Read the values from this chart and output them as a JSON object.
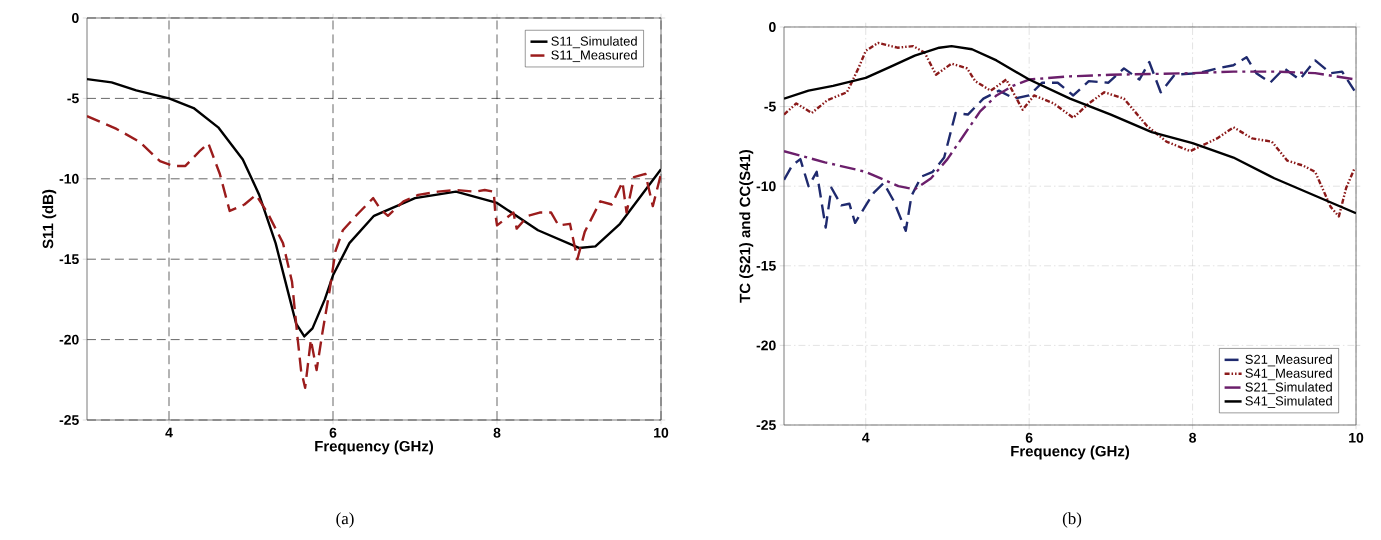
{
  "chart_data": [
    {
      "type": "line",
      "xlabel": "Frequency (GHz)",
      "ylabel": "S11 (dB)",
      "xlim": [
        3,
        10
      ],
      "ylim": [
        -25,
        0
      ],
      "xticks": [
        4,
        6,
        8,
        10
      ],
      "yticks": [
        -25,
        -20,
        -15,
        -10,
        -5,
        0
      ],
      "grid": true,
      "legend": "top right",
      "annotations": [
        "(a)"
      ],
      "series": [
        {
          "name": "S11_Simulated",
          "color": "#000000",
          "line_style": "solid",
          "x": [
            3,
            3.3,
            3.6,
            4,
            4.3,
            4.6,
            4.9,
            5.1,
            5.3,
            5.45,
            5.55,
            5.65,
            5.75,
            5.9,
            6.0,
            6.2,
            6.5,
            7,
            7.5,
            8,
            8.5,
            9,
            9.2,
            9.5,
            10
          ],
          "values": [
            -3.8,
            -4.0,
            -4.5,
            -5.0,
            -5.6,
            -6.8,
            -8.8,
            -11,
            -14,
            -17,
            -19,
            -19.8,
            -19.3,
            -17.5,
            -16,
            -14,
            -12.3,
            -11.2,
            -10.8,
            -11.5,
            -13.2,
            -14.3,
            -14.2,
            -12.8,
            -9.4
          ]
        },
        {
          "name": "S11_Measured",
          "color": "#9b1c1c",
          "line_style": "dashed",
          "x": [
            3,
            3.36,
            3.64,
            3.89,
            4.05,
            4.2,
            4.37,
            4.48,
            4.62,
            4.74,
            4.92,
            5.06,
            5.2,
            5.39,
            5.5,
            5.57,
            5.61,
            5.66,
            5.73,
            5.8,
            5.87,
            5.96,
            6.03,
            6.12,
            6.28,
            6.49,
            6.58,
            6.67,
            6.86,
            7.04,
            7.28,
            7.5,
            7.73,
            7.85,
            7.96,
            7.98,
            8.0,
            8.2,
            8.24,
            8.38,
            8.52,
            8.66,
            8.75,
            8.89,
            8.98,
            9.07,
            9.26,
            9.4,
            9.53,
            9.58,
            9.67,
            9.81,
            9.9,
            10
          ],
          "values": [
            -6.1,
            -6.9,
            -7.7,
            -8.9,
            -9.2,
            -9.2,
            -8.3,
            -7.8,
            -9.7,
            -12.0,
            -11.6,
            -11.0,
            -12.1,
            -14.0,
            -16.4,
            -20.0,
            -21.9,
            -23,
            -20,
            -21.9,
            -19.6,
            -16.9,
            -14.5,
            -13.2,
            -12.3,
            -11.2,
            -11.9,
            -12.3,
            -11.4,
            -11.0,
            -10.8,
            -10.7,
            -10.8,
            -10.7,
            -10.8,
            -12.2,
            -12.9,
            -12.1,
            -13.1,
            -12.3,
            -12.1,
            -12.1,
            -12.9,
            -12.8,
            -15,
            -13.3,
            -11.4,
            -11.6,
            -10.2,
            -12.1,
            -9.9,
            -9.7,
            -11.7,
            -9.7
          ]
        }
      ]
    },
    {
      "type": "line",
      "xlabel": "Frequency (GHz)",
      "ylabel": "TC (S21) and CC(S41)",
      "xlim": [
        3,
        10
      ],
      "ylim": [
        -25,
        0
      ],
      "xticks": [
        4,
        6,
        8,
        10
      ],
      "yticks": [
        -25,
        -20,
        -15,
        -10,
        -5,
        0
      ],
      "grid": true,
      "legend": "bottom right",
      "annotations": [
        "(b)"
      ],
      "series": [
        {
          "name": "S21_Measured",
          "color": "#1f2a6e",
          "line_style": "dashed",
          "x": [
            3,
            3.1,
            3.2,
            3.3,
            3.4,
            3.51,
            3.58,
            3.7,
            3.8,
            3.87,
            3.99,
            4.1,
            4.22,
            4.34,
            4.49,
            4.56,
            4.68,
            4.82,
            4.96,
            5.1,
            5.25,
            5.44,
            5.63,
            5.82,
            6.0,
            6.16,
            6.35,
            6.54,
            6.73,
            6.97,
            7.16,
            7.35,
            7.47,
            7.61,
            7.78,
            8.07,
            8.3,
            8.5,
            8.66,
            8.78,
            8.95,
            9.12,
            9.31,
            9.5,
            9.69,
            9.83,
            9.98
          ],
          "values": [
            -9.6,
            -8.7,
            -8.3,
            -10,
            -9.1,
            -12.6,
            -10.1,
            -11.2,
            -11.1,
            -12.3,
            -11.3,
            -10.4,
            -9.8,
            -10.9,
            -12.8,
            -10.6,
            -9.4,
            -9.1,
            -8.2,
            -5.4,
            -5.5,
            -4.5,
            -4.0,
            -4.5,
            -4.3,
            -3.5,
            -3.5,
            -4.3,
            -3.4,
            -3.5,
            -2.6,
            -3.3,
            -2.2,
            -4.1,
            -3.0,
            -2.9,
            -2.6,
            -2.4,
            -1.9,
            -2.9,
            -3.5,
            -2.6,
            -3.3,
            -2.1,
            -2.9,
            -2.8,
            -4.0
          ]
        },
        {
          "name": "S41_Measured",
          "color": "#8b1a1a",
          "line_style": "dotted",
          "x": [
            3,
            3.15,
            3.34,
            3.53,
            3.77,
            3.91,
            4.0,
            4.15,
            4.39,
            4.58,
            4.72,
            4.86,
            5.05,
            5.24,
            5.34,
            5.53,
            5.72,
            5.92,
            6.06,
            6.3,
            6.54,
            6.73,
            6.92,
            7.16,
            7.44,
            7.68,
            7.97,
            8.3,
            8.5,
            8.73,
            8.97,
            9.16,
            9.35,
            9.5,
            9.69,
            9.79,
            9.88,
            9.98
          ],
          "values": [
            -5.5,
            -4.8,
            -5.4,
            -4.6,
            -4.1,
            -2.6,
            -1.5,
            -1.0,
            -1.3,
            -1.2,
            -1.6,
            -3.0,
            -2.3,
            -2.6,
            -3.4,
            -4.0,
            -3.3,
            -5.2,
            -4.3,
            -4.8,
            -5.7,
            -4.8,
            -4.1,
            -4.5,
            -6.2,
            -7.2,
            -7.8,
            -7.0,
            -6.3,
            -7.0,
            -7.2,
            -8.4,
            -8.7,
            -9.1,
            -11.3,
            -11.9,
            -10.1,
            -8.9
          ]
        },
        {
          "name": "S21_Simulated",
          "color": "#6b1f6b",
          "line_style": "dashed",
          "x": [
            3,
            3.5,
            4,
            4.4,
            4.6,
            4.8,
            5.0,
            5.2,
            5.4,
            5.6,
            5.8,
            6,
            6.5,
            7,
            8,
            8.5,
            9,
            9.5,
            10
          ],
          "values": [
            -7.8,
            -8.5,
            -9.1,
            -10.0,
            -10.2,
            -9.5,
            -8.3,
            -6.8,
            -5.3,
            -4.3,
            -3.7,
            -3.3,
            -3.1,
            -3.0,
            -2.9,
            -2.8,
            -2.8,
            -2.9,
            -3.3
          ]
        },
        {
          "name": "S41_Simulated",
          "color": "#000000",
          "line_style": "solid",
          "x": [
            3,
            3.3,
            3.6,
            4,
            4.3,
            4.6,
            4.9,
            5.05,
            5.3,
            5.6,
            6,
            6.5,
            7,
            7.5,
            8,
            8.5,
            9,
            9.5,
            10
          ],
          "values": [
            -4.5,
            -4.0,
            -3.7,
            -3.2,
            -2.5,
            -1.8,
            -1.3,
            -1.2,
            -1.4,
            -2.1,
            -3.3,
            -4.5,
            -5.5,
            -6.6,
            -7.3,
            -8.2,
            -9.5,
            -10.6,
            -11.7
          ]
        }
      ]
    }
  ]
}
